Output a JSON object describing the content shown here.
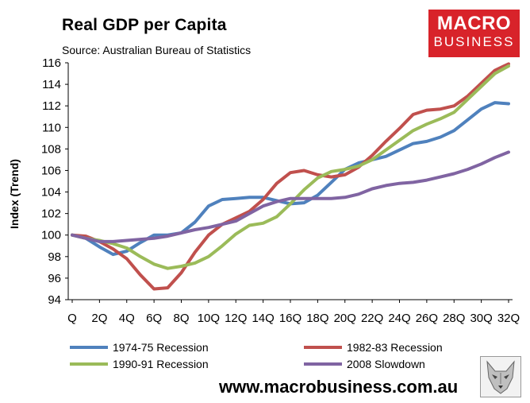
{
  "branding": {
    "logo_line1": "MACRO",
    "logo_line2": "BUSINESS",
    "website": "www.macrobusiness.com.au",
    "logo_color": "#d8232a"
  },
  "chart_data": {
    "type": "line",
    "title": "Real GDP per Capita",
    "subtitle": "Source: Australian Bureau of Statistics",
    "xlabel": "",
    "ylabel": "Index (Trend)",
    "ylim": [
      94,
      116
    ],
    "yticks": [
      94,
      96,
      98,
      100,
      102,
      104,
      106,
      108,
      110,
      112,
      114,
      116
    ],
    "grid": false,
    "x": [
      0,
      1,
      2,
      3,
      4,
      5,
      6,
      7,
      8,
      9,
      10,
      11,
      12,
      13,
      14,
      15,
      16,
      17,
      18,
      19,
      20,
      21,
      22,
      23,
      24,
      25,
      26,
      27,
      28,
      29,
      30,
      31,
      32
    ],
    "xtick_labels": [
      "Q",
      "2Q",
      "4Q",
      "6Q",
      "8Q",
      "10Q",
      "12Q",
      "14Q",
      "16Q",
      "18Q",
      "20Q",
      "22Q",
      "24Q",
      "26Q",
      "28Q",
      "30Q",
      "32Q"
    ],
    "xtick_positions": [
      0,
      2,
      4,
      6,
      8,
      10,
      12,
      14,
      16,
      18,
      20,
      22,
      24,
      26,
      28,
      30,
      32
    ],
    "series": [
      {
        "name": "1974-75 Recession",
        "color": "#4f81bd",
        "values": [
          100.0,
          99.7,
          98.9,
          98.2,
          98.5,
          99.3,
          100.0,
          100.0,
          100.2,
          101.2,
          102.7,
          103.3,
          103.4,
          103.5,
          103.5,
          103.2,
          102.9,
          103.0,
          103.7,
          104.9,
          106.1,
          106.7,
          107.0,
          107.3,
          107.9,
          108.5,
          108.7,
          109.1,
          109.7,
          110.7,
          111.7,
          112.3,
          112.2
        ]
      },
      {
        "name": "1982-83 Recession",
        "color": "#c0504d",
        "values": [
          100.0,
          99.9,
          99.4,
          98.7,
          97.8,
          96.3,
          95.0,
          95.1,
          96.5,
          98.4,
          100.0,
          101.0,
          101.6,
          102.2,
          103.3,
          104.8,
          105.8,
          106.0,
          105.6,
          105.4,
          105.6,
          106.3,
          107.4,
          108.7,
          109.9,
          111.2,
          111.6,
          111.7,
          112.0,
          112.9,
          114.1,
          115.3,
          115.9
        ]
      },
      {
        "name": "1990-91 Recession",
        "color": "#9bbb59",
        "values": [
          100.0,
          99.7,
          99.5,
          99.2,
          98.8,
          98.0,
          97.3,
          96.9,
          97.1,
          97.4,
          98.0,
          99.0,
          100.1,
          100.9,
          101.1,
          101.7,
          102.9,
          104.2,
          105.3,
          105.9,
          106.1,
          106.4,
          107.0,
          107.9,
          108.8,
          109.7,
          110.3,
          110.8,
          111.4,
          112.6,
          113.8,
          115.0,
          115.7
        ]
      },
      {
        "name": "2008 Slowdown",
        "color": "#8064a2",
        "values": [
          100.0,
          99.7,
          99.4,
          99.4,
          99.5,
          99.6,
          99.7,
          99.9,
          100.2,
          100.5,
          100.7,
          101.0,
          101.3,
          102.0,
          102.7,
          103.1,
          103.4,
          103.4,
          103.4,
          103.4,
          103.5,
          103.8,
          104.3,
          104.6,
          104.8,
          104.9,
          105.1,
          105.4,
          105.7,
          106.1,
          106.6,
          107.2,
          107.7
        ]
      }
    ]
  }
}
